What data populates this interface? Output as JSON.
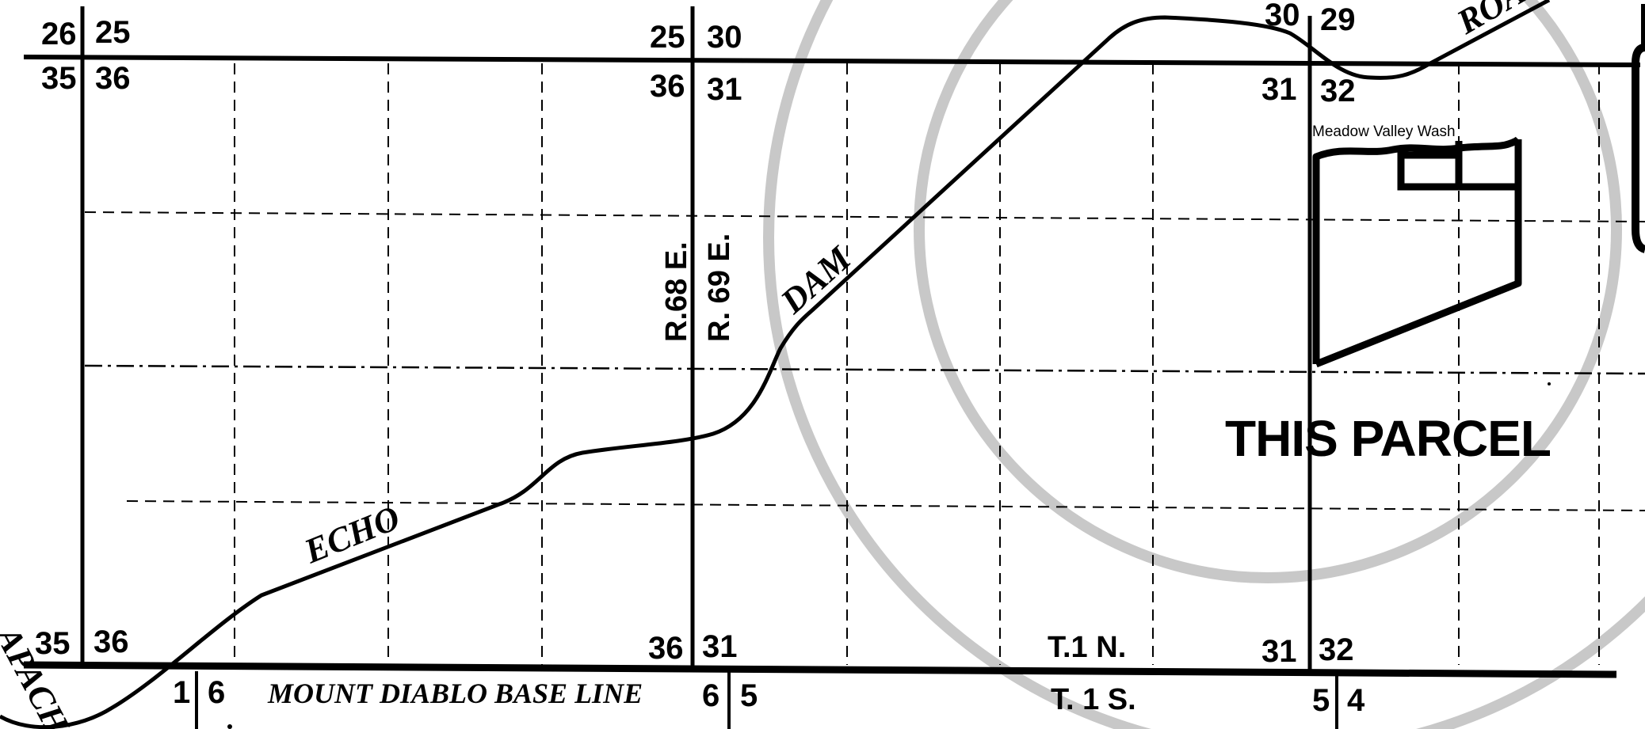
{
  "section_numbers": {
    "nw_top_left": "26",
    "nw_top_right": "25",
    "nw_bottom_left": "35",
    "nw_bottom_right": "36",
    "nc_top_left": "25",
    "nc_top_right": "30",
    "nc_bottom_left": "36",
    "nc_bottom_right": "31",
    "ne_top_left": "30",
    "ne_top_right": "29",
    "ne_bottom_left": "31",
    "ne_bottom_right": "32",
    "sw_top_left": "35",
    "sw_top_right": "36",
    "sw_bottom_left": "1",
    "sw_bottom_right": "6",
    "sc_top_left": "36",
    "sc_top_right": "31",
    "sc_bottom_left": "6",
    "sc_bottom_right": "5",
    "se_top_left": "31",
    "se_top_right": "32",
    "se_bottom_left": "5",
    "se_bottom_right": "4"
  },
  "ranges": {
    "west": "R.68 E.",
    "east": "R. 69 E."
  },
  "townships": {
    "north": "T.1 N.",
    "south": "T. 1 S."
  },
  "baseline_label": "MOUNT DIABLO BASE LINE",
  "road_labels": {
    "echo": "ECHO",
    "dam": "DAM",
    "road": "ROAD",
    "apache": "APACHE"
  },
  "wash_label": "Meadow Valley Wash",
  "parcel_label": "THIS PARCEL",
  "colors": {
    "ink": "#000000",
    "watermark": "#c8c8c8",
    "background": "#ffffff"
  }
}
